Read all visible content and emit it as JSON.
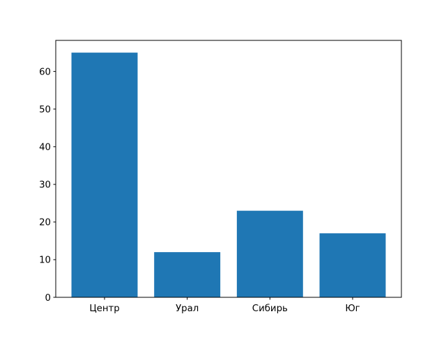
{
  "chart_data": {
    "type": "bar",
    "title": "",
    "xlabel": "",
    "ylabel": "",
    "categories": [
      "Центр",
      "Урал",
      "Сибирь",
      "Юг"
    ],
    "values": [
      65,
      12,
      23,
      17
    ],
    "ylim": [
      0,
      68.25
    ],
    "yticks": [
      0,
      10,
      20,
      30,
      40,
      50,
      60
    ],
    "grid": false,
    "bar_color": "#1f77b4"
  }
}
